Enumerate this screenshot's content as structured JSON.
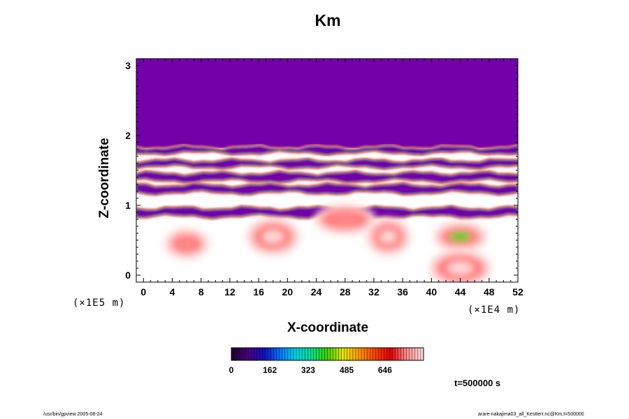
{
  "chart_data": {
    "type": "heatmap",
    "title": "Km",
    "xlabel": "X-coordinate",
    "ylabel": "Z-coordinate",
    "x_unit": "(×1E4 m)",
    "y_unit": "(×1E5 m)",
    "xlim": [
      -1,
      52
    ],
    "ylim": [
      -0.1,
      3.1
    ],
    "x_ticks": [
      0,
      4,
      8,
      12,
      16,
      20,
      24,
      28,
      32,
      36,
      40,
      44,
      48,
      52
    ],
    "y_ticks": [
      0,
      1,
      2,
      3
    ],
    "colorbar": {
      "ticks": [
        0,
        162,
        323,
        485,
        646
      ],
      "max": 808,
      "colors": [
        "#220033",
        "#4b0082",
        "#1010c0",
        "#0077ff",
        "#00d5e5",
        "#00e08a",
        "#40d000",
        "#e6e600",
        "#ff9900",
        "#ff4500",
        "#e00000",
        "#ff8a8a",
        "#ffd6d6"
      ]
    },
    "fields": {
      "upper_layer": {
        "z_range": [
          1.82,
          3.1
        ],
        "value": 20,
        "color": "#7300a8"
      },
      "bands": [
        {
          "z_range": [
            1.76,
            1.82
          ],
          "value": 150
        },
        {
          "z_range": [
            1.56,
            1.63
          ],
          "value": 60
        },
        {
          "z_range": [
            1.36,
            1.45
          ],
          "value": 60
        },
        {
          "z_range": [
            1.19,
            1.28
          ],
          "value": 60
        },
        {
          "z_range": [
            0.85,
            0.95
          ],
          "value": 60
        }
      ],
      "blobs": [
        {
          "x": 6,
          "z": 0.45,
          "value": 740
        },
        {
          "x": 18,
          "z": 0.55,
          "value": 760
        },
        {
          "x": 28,
          "z": 0.8,
          "value": 720
        },
        {
          "x": 34,
          "z": 0.55,
          "value": 750
        },
        {
          "x": 44,
          "z": 0.55,
          "value": 400
        },
        {
          "x": 44,
          "z": 0.1,
          "value": 760
        }
      ]
    },
    "time_label": "t=500000 s"
  },
  "footer": {
    "left": "/usr/bin/gpview 2005-08-24",
    "right": "arare-nakajima03_all_Kestterr.nc@Km,t=500000"
  }
}
